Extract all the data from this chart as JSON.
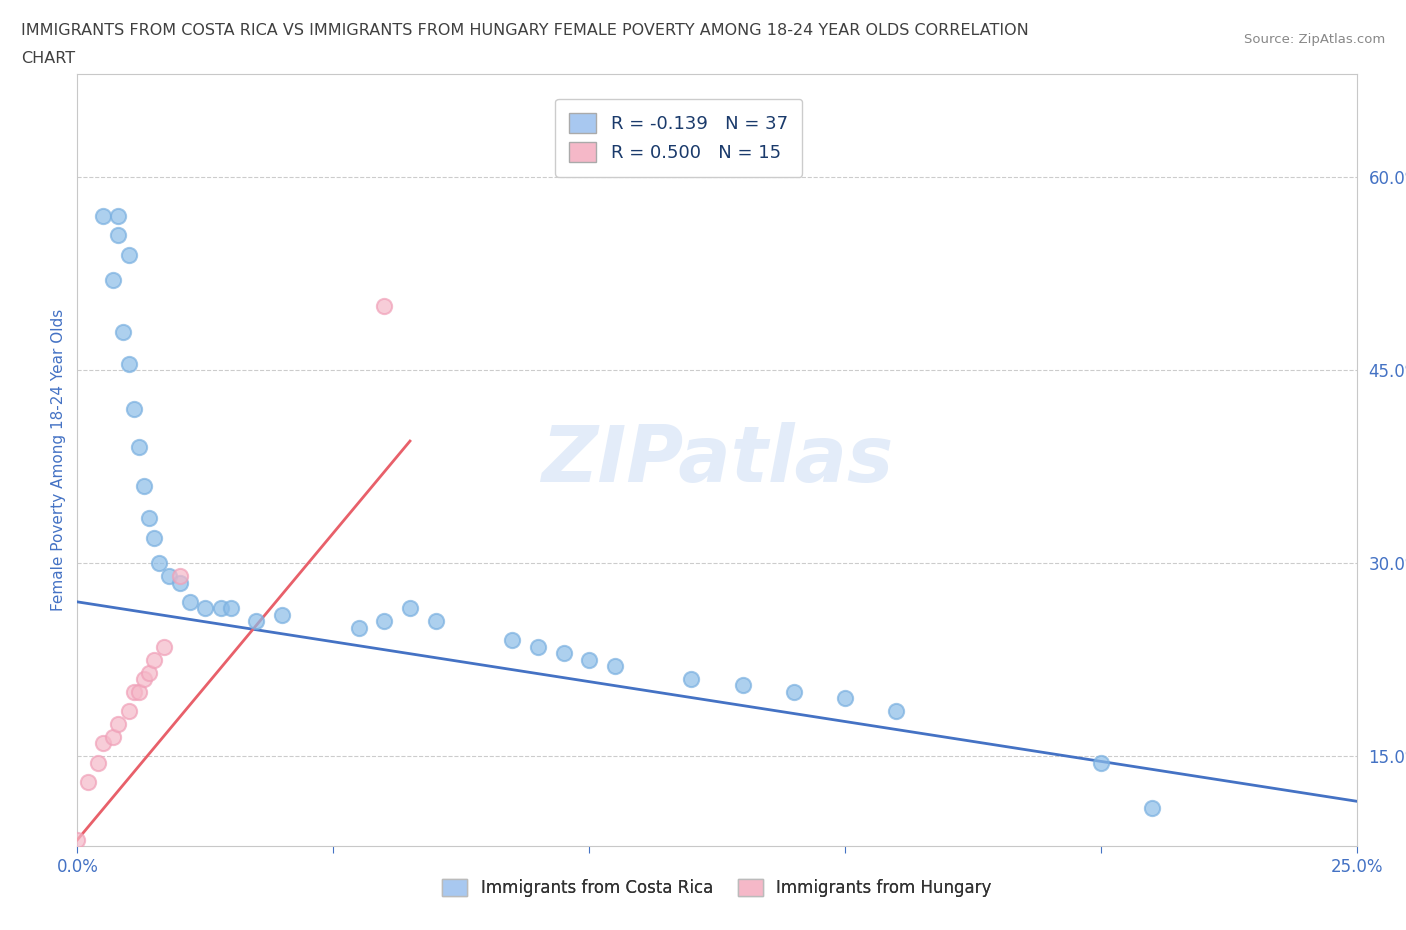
{
  "title_line1": "IMMIGRANTS FROM COSTA RICA VS IMMIGRANTS FROM HUNGARY FEMALE POVERTY AMONG 18-24 YEAR OLDS CORRELATION",
  "title_line2": "CHART",
  "source_text": "Source: ZipAtlas.com",
  "ylabel": "Female Poverty Among 18-24 Year Olds",
  "xlim": [
    0.0,
    0.25
  ],
  "ylim": [
    0.08,
    0.68
  ],
  "xticks": [
    0.0,
    0.05,
    0.1,
    0.15,
    0.2,
    0.25
  ],
  "xticklabels": [
    "0.0%",
    "",
    "",
    "",
    "",
    "25.0%"
  ],
  "yticks_right": [
    0.15,
    0.3,
    0.45,
    0.6
  ],
  "yticklabels_right": [
    "15.0%",
    "30.0%",
    "45.0%",
    "60.0%"
  ],
  "watermark": "ZIPatlas",
  "legend_entries": [
    {
      "label": "R = -0.139   N = 37",
      "color": "#a8c8f0"
    },
    {
      "label": "R = 0.500   N = 15",
      "color": "#f5b8c8"
    }
  ],
  "legend_labels_bottom": [
    "Immigrants from Costa Rica",
    "Immigrants from Hungary"
  ],
  "legend_colors_bottom": [
    "#a8c8f0",
    "#f5b8c8"
  ],
  "blue_scatter_x": [
    0.005,
    0.007,
    0.008,
    0.008,
    0.009,
    0.01,
    0.01,
    0.011,
    0.012,
    0.013,
    0.014,
    0.015,
    0.016,
    0.018,
    0.02,
    0.022,
    0.025,
    0.028,
    0.03,
    0.035,
    0.04,
    0.055,
    0.06,
    0.065,
    0.07,
    0.085,
    0.09,
    0.095,
    0.1,
    0.105,
    0.12,
    0.13,
    0.14,
    0.15,
    0.16,
    0.2,
    0.21
  ],
  "blue_scatter_y": [
    0.57,
    0.52,
    0.555,
    0.57,
    0.48,
    0.455,
    0.54,
    0.42,
    0.39,
    0.36,
    0.335,
    0.32,
    0.3,
    0.29,
    0.285,
    0.27,
    0.265,
    0.265,
    0.265,
    0.255,
    0.26,
    0.25,
    0.255,
    0.265,
    0.255,
    0.24,
    0.235,
    0.23,
    0.225,
    0.22,
    0.21,
    0.205,
    0.2,
    0.195,
    0.185,
    0.145,
    0.11
  ],
  "pink_scatter_x": [
    0.0,
    0.002,
    0.004,
    0.005,
    0.007,
    0.008,
    0.01,
    0.011,
    0.012,
    0.013,
    0.014,
    0.015,
    0.017,
    0.02,
    0.06
  ],
  "pink_scatter_y": [
    0.085,
    0.13,
    0.145,
    0.16,
    0.165,
    0.175,
    0.185,
    0.2,
    0.2,
    0.21,
    0.215,
    0.225,
    0.235,
    0.29,
    0.5
  ],
  "blue_line_x": [
    0.0,
    0.25
  ],
  "blue_line_y": [
    0.27,
    0.115
  ],
  "pink_line_x": [
    0.0,
    0.065
  ],
  "pink_line_y": [
    0.085,
    0.395
  ],
  "dot_size": 120,
  "blue_color": "#8bbce8",
  "blue_edge_color": "#7ab0e0",
  "pink_color": "#f5b8c8",
  "pink_edge_color": "#f0a0b8",
  "blue_line_color": "#4472c4",
  "pink_line_color": "#e8606a",
  "background_color": "#ffffff",
  "grid_color": "#cccccc",
  "title_color": "#404040",
  "axis_label_color": "#4472c4",
  "tick_color": "#4472c4"
}
